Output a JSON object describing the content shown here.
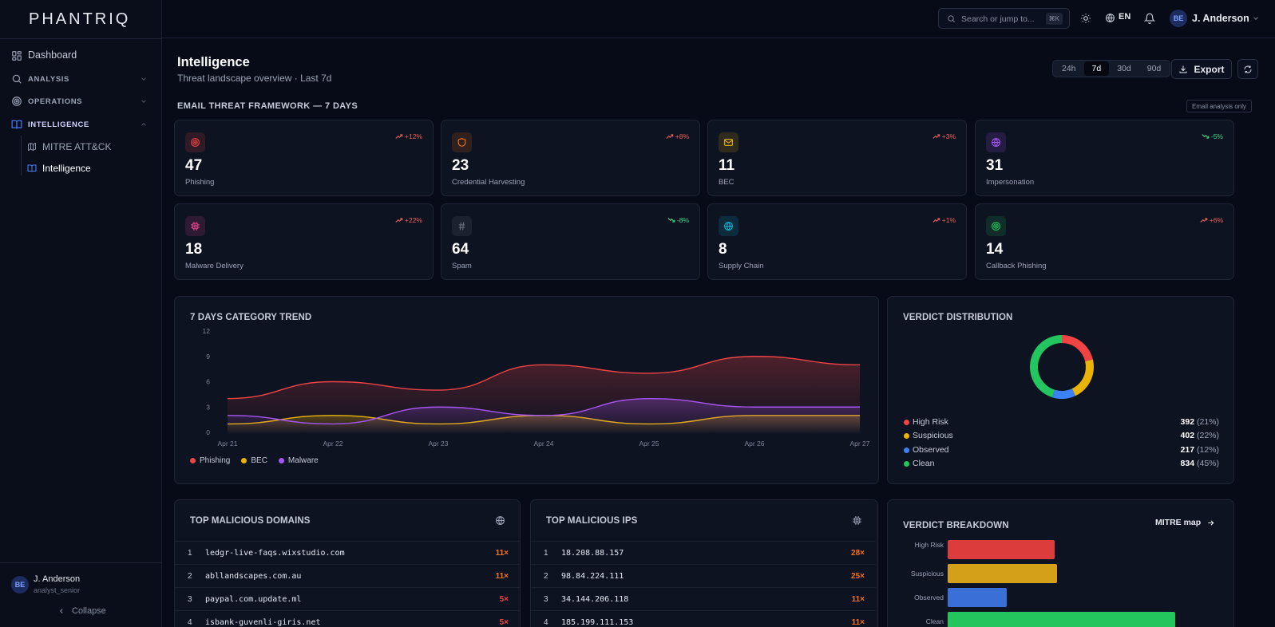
{
  "app": {
    "logo": "PHANTRIQ"
  },
  "sidebar": {
    "dashboard": "Dashboard",
    "analysis": "ANALYSIS",
    "operations": "OPERATIONS",
    "intelligence": "INTELLIGENCE",
    "sub_items": [
      "MITRE ATT&CK",
      "Intelligence"
    ],
    "user": {
      "name": "J. Anderson",
      "role": "analyst_senior",
      "initials": "BE"
    },
    "collapse": "Collapse"
  },
  "topbar": {
    "search_placeholder": "Search or jump to...",
    "shortcut": "⌘K",
    "language": "EN",
    "user_name": "J. Anderson",
    "user_initials": "BE"
  },
  "page": {
    "title": "Intelligence",
    "subtitle": "Threat landscape overview · Last 7d",
    "ranges": [
      "24h",
      "7d",
      "30d",
      "90d"
    ],
    "active_range": "7d",
    "export_label": "Export"
  },
  "framework": {
    "title": "EMAIL THREAT FRAMEWORK — 7 DAYS",
    "badge": "Email analysis only",
    "cards": [
      {
        "value": "47",
        "label": "Phishing",
        "trend": "+12%",
        "direction": "up",
        "icon": "target-icon",
        "color": "#ef4444"
      },
      {
        "value": "23",
        "label": "Credential Harvesting",
        "trend": "+8%",
        "direction": "up",
        "icon": "shield-icon",
        "color": "#f97316"
      },
      {
        "value": "11",
        "label": "BEC",
        "trend": "+3%",
        "direction": "up",
        "icon": "mail-icon",
        "color": "#eab308"
      },
      {
        "value": "31",
        "label": "Impersonation",
        "trend": "-5%",
        "direction": "down",
        "icon": "globe-icon",
        "color": "#a855f7"
      },
      {
        "value": "18",
        "label": "Malware Delivery",
        "trend": "+22%",
        "direction": "up",
        "icon": "cpu-icon",
        "color": "#ec4899"
      },
      {
        "value": "64",
        "label": "Spam",
        "trend": "-8%",
        "direction": "down",
        "icon": "hash-icon",
        "color": "#6b7280"
      },
      {
        "value": "8",
        "label": "Supply Chain",
        "trend": "+1%",
        "direction": "up",
        "icon": "globe-icon",
        "color": "#06b6d4"
      },
      {
        "value": "14",
        "label": "Callback Phishing",
        "trend": "+6%",
        "direction": "up",
        "icon": "target-icon",
        "color": "#22c55e"
      }
    ]
  },
  "trend": {
    "title": "7 DAYS CATEGORY TREND",
    "chart_data": {
      "type": "area",
      "x": [
        "Apr 21",
        "Apr 22",
        "Apr 23",
        "Apr 24",
        "Apr 25",
        "Apr 26",
        "Apr 27"
      ],
      "ylim": [
        0,
        12
      ],
      "yticks": [
        0,
        3,
        6,
        9,
        12
      ],
      "series": [
        {
          "name": "Phishing",
          "color": "#ef4444",
          "values": [
            4,
            6,
            5,
            8,
            7,
            9,
            8
          ]
        },
        {
          "name": "BEC",
          "color": "#eab308",
          "values": [
            1,
            2,
            1,
            2,
            1,
            2,
            2
          ]
        },
        {
          "name": "Malware",
          "color": "#a855f7",
          "values": [
            2,
            1,
            3,
            2,
            4,
            3,
            3
          ]
        }
      ]
    }
  },
  "verdict_distribution": {
    "title": "VERDICT DISTRIBUTION",
    "chart_data": {
      "type": "pie",
      "slices": [
        {
          "name": "High Risk",
          "value": 392,
          "pct": "(21%)",
          "color": "#ef4444"
        },
        {
          "name": "Suspicious",
          "value": 402,
          "pct": "(22%)",
          "color": "#eab308"
        },
        {
          "name": "Observed",
          "value": 217,
          "pct": "(12%)",
          "color": "#3b82f6"
        },
        {
          "name": "Clean",
          "value": 834,
          "pct": "(45%)",
          "color": "#22c55e"
        }
      ]
    }
  },
  "domains": {
    "title": "TOP MALICIOUS DOMAINS",
    "rows": [
      {
        "rank": "1",
        "name": "ledgr-live-faqs.wixstudio.com",
        "count": "11×",
        "color": "#f97316"
      },
      {
        "rank": "2",
        "name": "abllandscapes.com.au",
        "count": "11×",
        "color": "#f97316"
      },
      {
        "rank": "3",
        "name": "paypal.com.update.ml",
        "count": "5×",
        "color": "#ef4444"
      },
      {
        "rank": "4",
        "name": "isbank-guvenli-giris.net",
        "count": "5×",
        "color": "#ef4444"
      }
    ]
  },
  "ips": {
    "title": "TOP MALICIOUS IPS",
    "rows": [
      {
        "rank": "1",
        "name": "18.208.88.157",
        "count": "28×",
        "color": "#f97316"
      },
      {
        "rank": "2",
        "name": "98.84.224.111",
        "count": "25×",
        "color": "#f97316"
      },
      {
        "rank": "3",
        "name": "34.144.206.118",
        "count": "11×",
        "color": "#f97316"
      },
      {
        "rank": "4",
        "name": "185.199.111.153",
        "count": "11×",
        "color": "#f97316"
      }
    ]
  },
  "breakdown": {
    "title": "VERDICT BREAKDOWN",
    "link": "MITRE map",
    "chart_data": {
      "type": "bar",
      "orientation": "horizontal",
      "categories": [
        "High Risk",
        "Suspicious",
        "Observed",
        "Clean"
      ],
      "values": [
        392,
        402,
        217,
        834
      ],
      "colors": [
        "#dc3c3c",
        "#d4a017",
        "#3b6fd8",
        "#22c55e"
      ]
    }
  }
}
